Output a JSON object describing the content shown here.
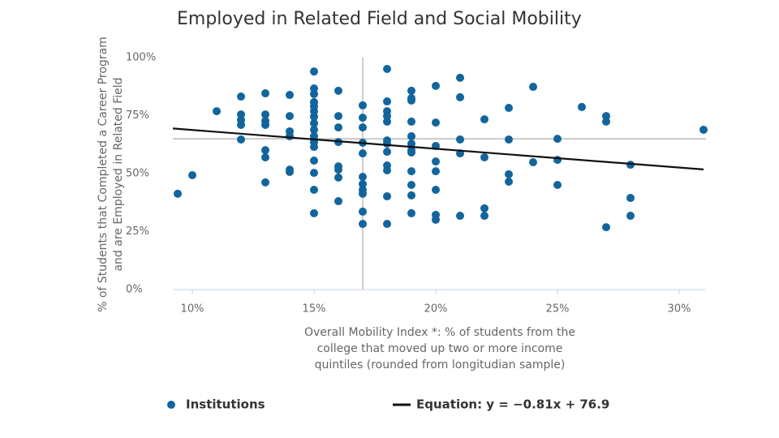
{
  "chart_data": {
    "type": "scatter",
    "title": "Employed in Related Field and Social Mobility",
    "x_label": [
      "Overall Mobility Index *: % of students from the",
      "college that moved up two or more income",
      "quintiles (rounded from longitudian sample)"
    ],
    "y_label": [
      "% of Students that Completed a Career Program",
      "and are Employed in Related Field"
    ],
    "xlim": [
      9.2,
      31.1
    ],
    "ylim": [
      0,
      100
    ],
    "xticks": [
      {
        "value": 10,
        "label": "10%"
      },
      {
        "value": 15,
        "label": "15%"
      },
      {
        "value": 20,
        "label": "20%"
      },
      {
        "value": 25,
        "label": "25%"
      },
      {
        "value": 30,
        "label": "30%"
      }
    ],
    "yticks": [
      {
        "value": 0,
        "label": "0%"
      },
      {
        "value": 25,
        "label": "25%"
      },
      {
        "value": 50,
        "label": "50%"
      },
      {
        "value": 75,
        "label": "75%"
      },
      {
        "value": 100,
        "label": "100%"
      }
    ],
    "reference_lines": {
      "x": 17,
      "y": 65
    },
    "series": [
      {
        "name": "Institutions",
        "color": "#12659c",
        "x": [
          9.4,
          10,
          11,
          12,
          12,
          12,
          12,
          12,
          13,
          13,
          13,
          13,
          13,
          13,
          13,
          14,
          14,
          14,
          14,
          14,
          14,
          15,
          15,
          15,
          15,
          15,
          15,
          15,
          15,
          15,
          15,
          15,
          15,
          15,
          15,
          15,
          15,
          16,
          16,
          16,
          16,
          16,
          16,
          16,
          16,
          17,
          17,
          17,
          17,
          17,
          17,
          17,
          17,
          17,
          17,
          17,
          18,
          18,
          18,
          18,
          18,
          18,
          18,
          18,
          18,
          18,
          18,
          18,
          19,
          19,
          19,
          19,
          19,
          19,
          19,
          19,
          19,
          19,
          19,
          19,
          20,
          20,
          20,
          20,
          20,
          20,
          20,
          20,
          21,
          21,
          21,
          21,
          21,
          22,
          22,
          22,
          22,
          23,
          23,
          23,
          23,
          24,
          24,
          25,
          25,
          25,
          26,
          27,
          27,
          27,
          28,
          28,
          28,
          31
        ],
        "values": [
          41.3,
          49.3,
          76.9,
          83.2,
          75.5,
          73.1,
          71,
          64.7,
          84.6,
          75.5,
          72.7,
          71,
          60.1,
          57,
          46.2,
          83.9,
          74.8,
          68.2,
          66.1,
          51.7,
          50.7,
          94,
          86.7,
          84.3,
          80.8,
          79,
          76.9,
          74.5,
          71.7,
          68.9,
          66.1,
          63.6,
          61.5,
          55.6,
          50.3,
          43,
          32.9,
          85.7,
          74.8,
          69.9,
          63.6,
          53.1,
          51.7,
          48.3,
          38.1,
          79.4,
          74.1,
          69.9,
          63.3,
          58.7,
          48.6,
          45.5,
          43,
          41.3,
          33.6,
          28.3,
          95.1,
          81.1,
          76.9,
          74.8,
          72.4,
          64.3,
          62.9,
          59.4,
          53.5,
          51.4,
          40.2,
          28.3,
          85.7,
          82.5,
          81.5,
          72.4,
          66.1,
          62.9,
          60.1,
          59.1,
          51,
          45.1,
          40.6,
          32.9,
          87.8,
          72,
          61.9,
          55.2,
          51,
          43,
          32.2,
          30.1,
          91.3,
          82.9,
          64.7,
          58.7,
          31.8,
          73.4,
          57,
          35,
          31.8,
          78.3,
          64.7,
          49.7,
          46.5,
          87.4,
          54.9,
          65,
          55.9,
          45.1,
          78.7,
          74.8,
          72.4,
          26.9,
          53.8,
          39.5,
          31.8,
          68.9
        ]
      }
    ],
    "trendline": {
      "name": "Equation: y = −0.81x + 76.9",
      "slope": -0.81,
      "intercept": 76.9,
      "color": "#111111"
    }
  }
}
